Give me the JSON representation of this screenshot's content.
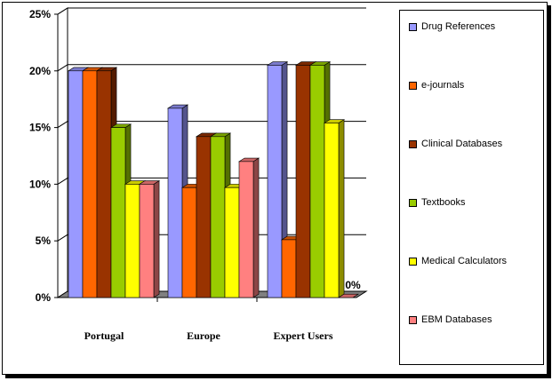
{
  "chart_data": {
    "type": "bar",
    "categories": [
      "Portugal",
      "Europe",
      "Expert Users"
    ],
    "series": [
      {
        "name": "Drug References",
        "color": "#9999ff",
        "values": [
          20,
          16.7,
          20.5
        ]
      },
      {
        "name": "e-journals",
        "color": "#ff6600",
        "values": [
          20,
          9.7,
          5.1
        ]
      },
      {
        "name": "Clinical Databases",
        "color": "#993300",
        "values": [
          20,
          14.2,
          20.5
        ]
      },
      {
        "name": "Textbooks",
        "color": "#99cc00",
        "values": [
          15,
          14.2,
          20.5
        ]
      },
      {
        "name": "Medical Calculators",
        "color": "#ffff00",
        "values": [
          10,
          9.7,
          15.4
        ]
      },
      {
        "name": "EBM Databases",
        "color": "#ff8080",
        "values": [
          10,
          12.0,
          0
        ]
      }
    ],
    "y_ticks": [
      "0%",
      "5%",
      "10%",
      "15%",
      "20%",
      "25%"
    ],
    "ylim": [
      0,
      25
    ],
    "grid": true,
    "legend_position": "right",
    "annotations": [
      {
        "text": "0%",
        "category": "Expert Users",
        "series": "EBM Databases"
      }
    ]
  }
}
